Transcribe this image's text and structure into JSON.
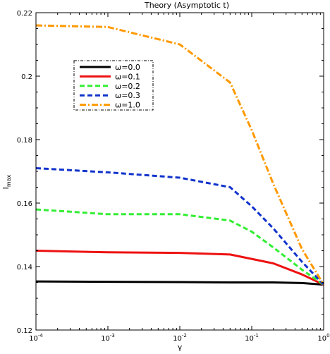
{
  "chart_data": {
    "type": "line",
    "title": "Theory (Asymptotic t)",
    "xlabel": "γ",
    "ylabel": "I_max",
    "xscale": "log",
    "xlim": [
      0.0001,
      1
    ],
    "ylim": [
      0.12,
      0.22
    ],
    "xticks": [
      {
        "value": 0.0001,
        "base": "10",
        "exp": "-4"
      },
      {
        "value": 0.001,
        "base": "10",
        "exp": "-3"
      },
      {
        "value": 0.01,
        "base": "10",
        "exp": "-2"
      },
      {
        "value": 0.1,
        "base": "10",
        "exp": "-1"
      },
      {
        "value": 1,
        "base": "10",
        "exp": "0"
      }
    ],
    "yticks": [
      0.12,
      0.14,
      0.16,
      0.18,
      0.2,
      0.22
    ],
    "ytick_labels": [
      "0.12",
      "0.14",
      "0.16",
      "0.18",
      "0.2",
      "0.22"
    ],
    "grid": false,
    "legend_position": "upper-left",
    "series": [
      {
        "name": "ω=0.0",
        "color": "#000000",
        "dash": "solid",
        "x": [
          0.0001,
          0.001,
          0.01,
          0.05,
          0.2,
          0.5,
          1
        ],
        "y": [
          0.1353,
          0.1352,
          0.1351,
          0.135,
          0.135,
          0.1348,
          0.1343
        ]
      },
      {
        "name": "ω=0.1",
        "color": "#ee1111",
        "dash": "solid",
        "x": [
          0.0001,
          0.001,
          0.01,
          0.05,
          0.2,
          0.5,
          1
        ],
        "y": [
          0.145,
          0.1445,
          0.1443,
          0.1438,
          0.141,
          0.1375,
          0.1343
        ]
      },
      {
        "name": "ω=0.2",
        "color": "#33ee33",
        "dash": "dash",
        "x": [
          0.0001,
          0.001,
          0.01,
          0.05,
          0.1,
          0.2,
          0.5,
          1
        ],
        "y": [
          0.158,
          0.1565,
          0.1565,
          0.1545,
          0.151,
          0.146,
          0.139,
          0.1343
        ]
      },
      {
        "name": "ω=0.3",
        "color": "#1133cc",
        "dash": "dash",
        "x": [
          0.0001,
          0.001,
          0.01,
          0.05,
          0.1,
          0.2,
          0.5,
          1
        ],
        "y": [
          0.171,
          0.1697,
          0.168,
          0.165,
          0.159,
          0.152,
          0.1415,
          0.1343
        ]
      },
      {
        "name": "ω=1.0",
        "color": "#ff9900",
        "dash": "dashdot",
        "x": [
          0.0001,
          0.001,
          0.01,
          0.05,
          0.1,
          0.2,
          0.5,
          1
        ],
        "y": [
          0.216,
          0.2155,
          0.21,
          0.198,
          0.183,
          0.166,
          0.1455,
          0.1343
        ]
      }
    ]
  }
}
